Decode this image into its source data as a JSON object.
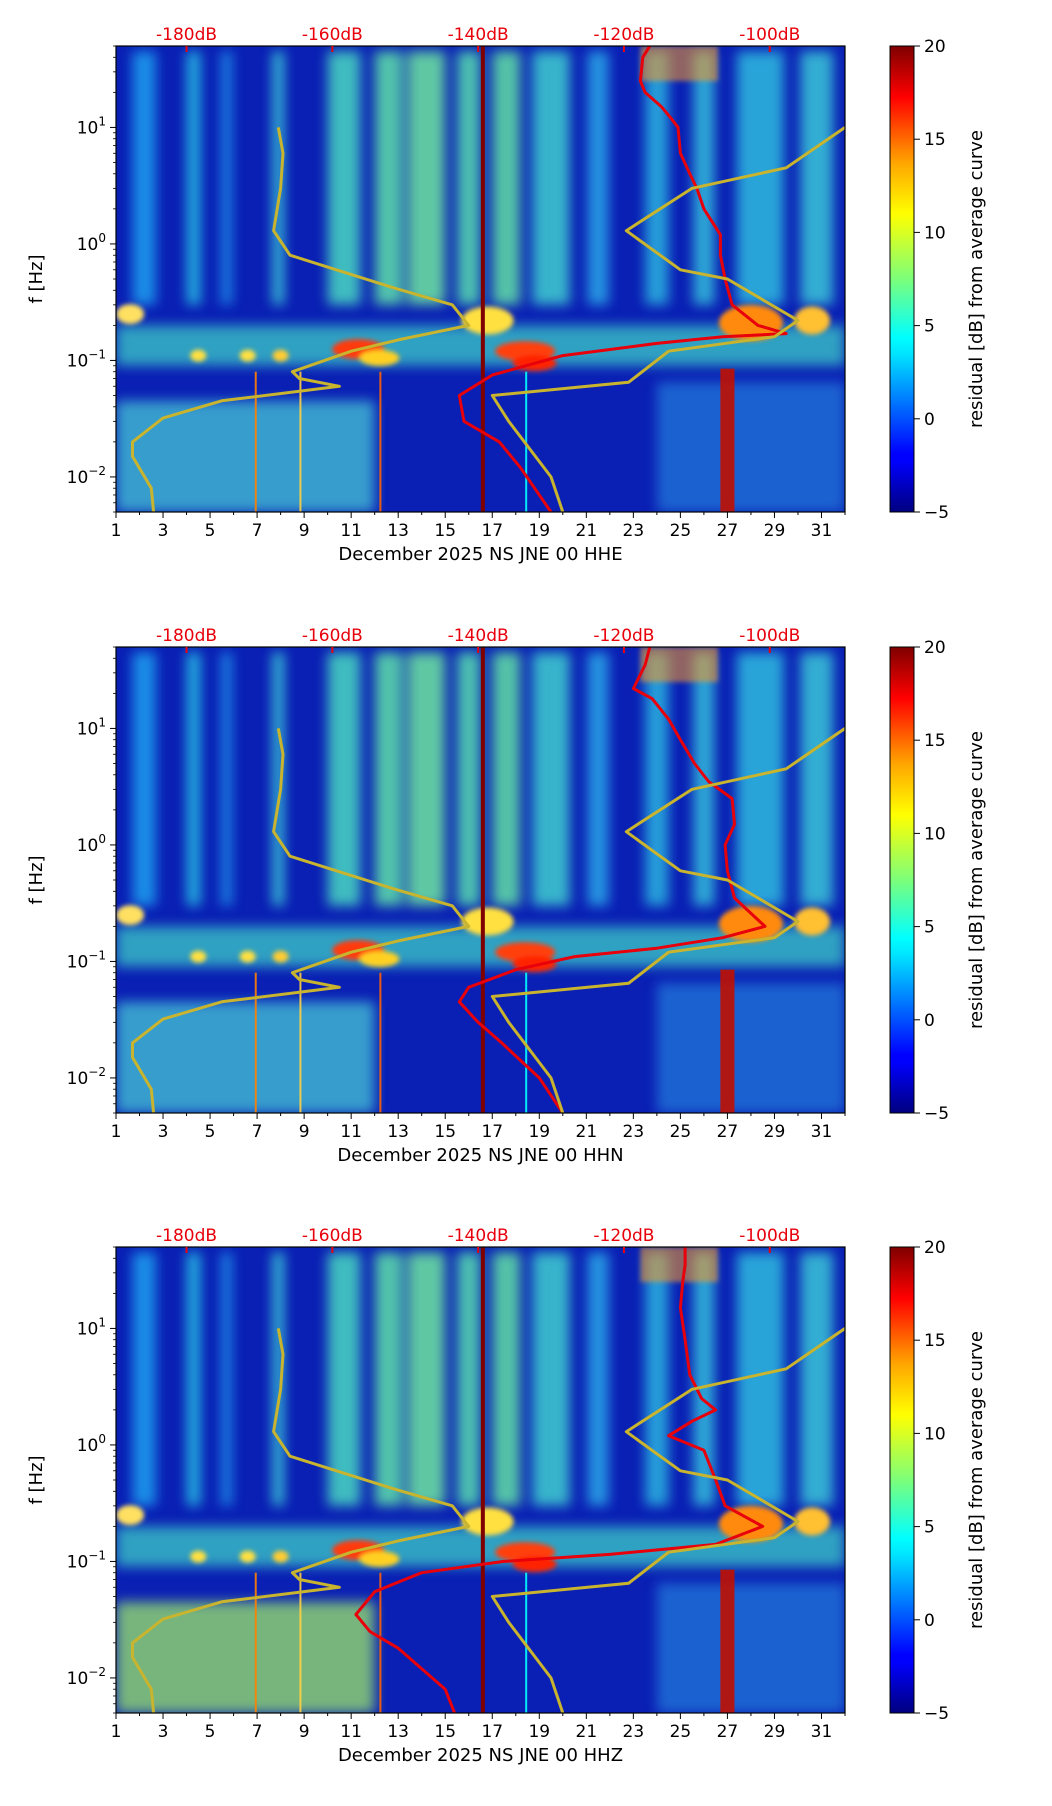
{
  "chart_data": [
    {
      "type": "heatmap",
      "title": "",
      "xlabel": "December 2025 NS JNE 00 HHE",
      "ylabel": "f [Hz]",
      "x_ticks": [
        "1",
        "3",
        "5",
        "7",
        "9",
        "11",
        "13",
        "15",
        "17",
        "19",
        "21",
        "23",
        "25",
        "27",
        "29",
        "31"
      ],
      "xlim": [
        1,
        32
      ],
      "y_scale": "log",
      "y_ticks": [
        {
          "mantissa": "10",
          "exponent": "1"
        },
        {
          "mantissa": "10",
          "exponent": "0"
        },
        {
          "mantissa": "10",
          "exponent": "−1"
        },
        {
          "mantissa": "10",
          "exponent": "−2"
        }
      ],
      "ylim": [
        0.005,
        50
      ],
      "db_ticks": [
        "-180dB",
        "-160dB",
        "-140dB",
        "-120dB",
        "-100dB"
      ],
      "colorbar": {
        "label": "residual [dB] from average curve",
        "ticks": [
          "20",
          "15",
          "10",
          "5",
          "0",
          "−5"
        ],
        "range": [
          -5,
          20
        ],
        "colormap": "jet"
      },
      "vertical_marker_day": 16.6,
      "series": [
        {
          "color": "#e8000b",
          "points": [
            [
              23.7,
              50
            ],
            [
              23.4,
              40
            ],
            [
              23.3,
              25
            ],
            [
              23.5,
              20
            ],
            [
              24.2,
              15
            ],
            [
              24.6,
              12
            ],
            [
              24.9,
              10
            ],
            [
              25.0,
              6
            ],
            [
              25.4,
              4
            ],
            [
              25.7,
              3
            ],
            [
              26.0,
              2
            ],
            [
              26.7,
              1.2
            ],
            [
              26.7,
              0.8
            ],
            [
              26.9,
              0.5
            ],
            [
              27.2,
              0.3
            ],
            [
              28.3,
              0.2
            ],
            [
              29.5,
              0.17
            ],
            [
              26.8,
              0.16
            ],
            [
              24.0,
              0.14
            ],
            [
              20.0,
              0.11
            ],
            [
              17.0,
              0.075
            ],
            [
              15.6,
              0.05
            ],
            [
              15.8,
              0.03
            ],
            [
              17.3,
              0.02
            ],
            [
              18.2,
              0.012
            ],
            [
              19.5,
              0.005
            ]
          ]
        },
        {
          "color": "#c8b42e",
          "points": [
            [
              7.9,
              10
            ],
            [
              8.1,
              6
            ],
            [
              8.0,
              3
            ],
            [
              7.7,
              1.3
            ],
            [
              8.4,
              0.8
            ],
            [
              12.8,
              0.42
            ],
            [
              15.3,
              0.3
            ],
            [
              16.0,
              0.2
            ],
            [
              13.0,
              0.15
            ],
            [
              11.0,
              0.12
            ],
            [
              8.5,
              0.08
            ],
            [
              8.8,
              0.07
            ],
            [
              10.5,
              0.06
            ],
            [
              5.5,
              0.045
            ],
            [
              3.0,
              0.032
            ],
            [
              1.7,
              0.02
            ],
            [
              1.7,
              0.015
            ],
            [
              2.5,
              0.008
            ],
            [
              2.6,
              0.005
            ]
          ]
        },
        {
          "color": "#c8b42e",
          "points": [
            [
              32,
              10
            ],
            [
              29.5,
              4.5
            ],
            [
              25.5,
              3
            ],
            [
              22.7,
              1.3
            ],
            [
              25.0,
              0.6
            ],
            [
              27.0,
              0.5
            ],
            [
              30.0,
              0.22
            ],
            [
              29.0,
              0.16
            ],
            [
              24.5,
              0.12
            ],
            [
              22.8,
              0.065
            ],
            [
              17.0,
              0.05
            ],
            [
              17.7,
              0.03
            ],
            [
              19.5,
              0.01
            ],
            [
              20.0,
              0.005
            ]
          ]
        }
      ]
    },
    {
      "type": "heatmap",
      "title": "",
      "xlabel": "December 2025 NS JNE 00 HHN",
      "ylabel": "f [Hz]",
      "x_ticks": [
        "1",
        "3",
        "5",
        "7",
        "9",
        "11",
        "13",
        "15",
        "17",
        "19",
        "21",
        "23",
        "25",
        "27",
        "29",
        "31"
      ],
      "xlim": [
        1,
        32
      ],
      "y_scale": "log",
      "y_ticks": [
        {
          "mantissa": "10",
          "exponent": "1"
        },
        {
          "mantissa": "10",
          "exponent": "0"
        },
        {
          "mantissa": "10",
          "exponent": "−1"
        },
        {
          "mantissa": "10",
          "exponent": "−2"
        }
      ],
      "ylim": [
        0.005,
        50
      ],
      "db_ticks": [
        "-180dB",
        "-160dB",
        "-140dB",
        "-120dB",
        "-100dB"
      ],
      "colorbar": {
        "label": "residual [dB] from average curve",
        "ticks": [
          "20",
          "15",
          "10",
          "5",
          "0",
          "−5"
        ],
        "range": [
          -5,
          20
        ],
        "colormap": "jet"
      },
      "vertical_marker_day": 16.6,
      "series": [
        {
          "color": "#e8000b",
          "points": [
            [
              23.7,
              50
            ],
            [
              23.5,
              35
            ],
            [
              23.0,
              22
            ],
            [
              23.8,
              18
            ],
            [
              24.5,
              12
            ],
            [
              25.0,
              8
            ],
            [
              25.6,
              5
            ],
            [
              26.2,
              3.5
            ],
            [
              27.2,
              2.5
            ],
            [
              27.3,
              1.5
            ],
            [
              26.9,
              1.0
            ],
            [
              27.0,
              0.6
            ],
            [
              27.3,
              0.35
            ],
            [
              28.6,
              0.2
            ],
            [
              26.8,
              0.16
            ],
            [
              24.0,
              0.13
            ],
            [
              20.5,
              0.11
            ],
            [
              18.0,
              0.085
            ],
            [
              16.0,
              0.06
            ],
            [
              15.6,
              0.045
            ],
            [
              16.4,
              0.03
            ],
            [
              17.4,
              0.02
            ],
            [
              19.0,
              0.01
            ],
            [
              20.0,
              0.005
            ]
          ]
        },
        {
          "color": "#c8b42e",
          "points": [
            [
              7.9,
              10
            ],
            [
              8.1,
              6
            ],
            [
              8.0,
              3
            ],
            [
              7.7,
              1.3
            ],
            [
              8.4,
              0.8
            ],
            [
              12.8,
              0.42
            ],
            [
              15.3,
              0.3
            ],
            [
              16.0,
              0.2
            ],
            [
              13.0,
              0.15
            ],
            [
              11.0,
              0.12
            ],
            [
              8.5,
              0.08
            ],
            [
              8.8,
              0.07
            ],
            [
              10.5,
              0.06
            ],
            [
              5.5,
              0.045
            ],
            [
              3.0,
              0.032
            ],
            [
              1.7,
              0.02
            ],
            [
              1.7,
              0.015
            ],
            [
              2.5,
              0.008
            ],
            [
              2.6,
              0.005
            ]
          ]
        },
        {
          "color": "#c8b42e",
          "points": [
            [
              32,
              10
            ],
            [
              29.5,
              4.5
            ],
            [
              25.5,
              3
            ],
            [
              22.7,
              1.3
            ],
            [
              25.0,
              0.6
            ],
            [
              27.0,
              0.5
            ],
            [
              30.0,
              0.22
            ],
            [
              29.0,
              0.16
            ],
            [
              24.5,
              0.12
            ],
            [
              22.8,
              0.065
            ],
            [
              17.0,
              0.05
            ],
            [
              17.7,
              0.03
            ],
            [
              19.5,
              0.01
            ],
            [
              20.0,
              0.005
            ]
          ]
        }
      ]
    },
    {
      "type": "heatmap",
      "title": "",
      "xlabel": "December 2025 NS JNE 00 HHZ",
      "ylabel": "f [Hz]",
      "x_ticks": [
        "1",
        "3",
        "5",
        "7",
        "9",
        "11",
        "13",
        "15",
        "17",
        "19",
        "21",
        "23",
        "25",
        "27",
        "29",
        "31"
      ],
      "xlim": [
        1,
        32
      ],
      "y_scale": "log",
      "y_ticks": [
        {
          "mantissa": "10",
          "exponent": "1"
        },
        {
          "mantissa": "10",
          "exponent": "0"
        },
        {
          "mantissa": "10",
          "exponent": "−1"
        },
        {
          "mantissa": "10",
          "exponent": "−2"
        }
      ],
      "ylim": [
        0.005,
        50
      ],
      "db_ticks": [
        "-180dB",
        "-160dB",
        "-140dB",
        "-120dB",
        "-100dB"
      ],
      "colorbar": {
        "label": "residual [dB] from average curve",
        "ticks": [
          "20",
          "15",
          "10",
          "5",
          "0",
          "−5"
        ],
        "range": [
          -5,
          20
        ],
        "colormap": "jet"
      },
      "vertical_marker_day": 16.6,
      "series": [
        {
          "color": "#e8000b",
          "points": [
            [
              25.2,
              50
            ],
            [
              25.2,
              35
            ],
            [
              25.1,
              25
            ],
            [
              25.0,
              15
            ],
            [
              25.2,
              8
            ],
            [
              25.4,
              4
            ],
            [
              25.9,
              2.5
            ],
            [
              26.5,
              2.0
            ],
            [
              25.5,
              1.6
            ],
            [
              24.5,
              1.2
            ],
            [
              26.0,
              0.9
            ],
            [
              26.5,
              0.5
            ],
            [
              26.9,
              0.3
            ],
            [
              28.5,
              0.2
            ],
            [
              26.5,
              0.14
            ],
            [
              22.0,
              0.115
            ],
            [
              17.5,
              0.1
            ],
            [
              14.0,
              0.08
            ],
            [
              12.0,
              0.055
            ],
            [
              11.2,
              0.035
            ],
            [
              11.8,
              0.025
            ],
            [
              13.0,
              0.018
            ],
            [
              14.0,
              0.012
            ],
            [
              15.0,
              0.008
            ],
            [
              15.4,
              0.005
            ]
          ]
        },
        {
          "color": "#c8b42e",
          "points": [
            [
              7.9,
              10
            ],
            [
              8.1,
              6
            ],
            [
              8.0,
              3
            ],
            [
              7.7,
              1.3
            ],
            [
              8.4,
              0.8
            ],
            [
              12.8,
              0.42
            ],
            [
              15.3,
              0.3
            ],
            [
              16.0,
              0.2
            ],
            [
              13.0,
              0.15
            ],
            [
              11.0,
              0.12
            ],
            [
              8.5,
              0.08
            ],
            [
              8.8,
              0.07
            ],
            [
              10.5,
              0.06
            ],
            [
              5.5,
              0.045
            ],
            [
              3.0,
              0.032
            ],
            [
              1.7,
              0.02
            ],
            [
              1.7,
              0.015
            ],
            [
              2.5,
              0.008
            ],
            [
              2.6,
              0.005
            ]
          ]
        },
        {
          "color": "#c8b42e",
          "points": [
            [
              32,
              10
            ],
            [
              29.5,
              4.5
            ],
            [
              25.5,
              3
            ],
            [
              22.7,
              1.3
            ],
            [
              25.0,
              0.6
            ],
            [
              27.0,
              0.5
            ],
            [
              30.0,
              0.22
            ],
            [
              29.0,
              0.16
            ],
            [
              24.5,
              0.12
            ],
            [
              22.8,
              0.065
            ],
            [
              17.0,
              0.05
            ],
            [
              17.7,
              0.03
            ],
            [
              19.5,
              0.01
            ],
            [
              20.0,
              0.005
            ]
          ]
        }
      ]
    }
  ]
}
